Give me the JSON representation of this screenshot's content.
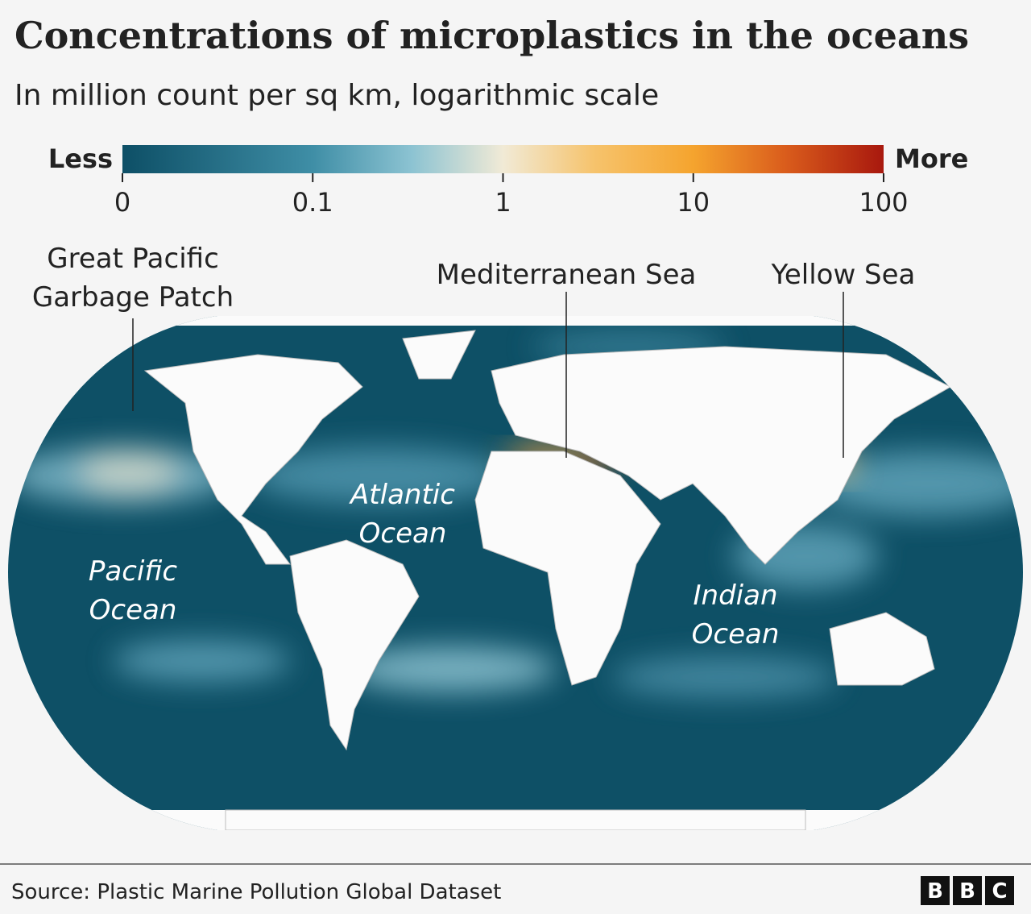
{
  "header": {
    "title": "Concentrations of microplastics in the oceans",
    "subtitle": "In million count per sq km, logarithmic scale"
  },
  "legend": {
    "low_label": "Less",
    "high_label": "More",
    "ticks": [
      0,
      0.1,
      1,
      10,
      100
    ]
  },
  "annotations": [
    {
      "lines": [
        "Great Pacific",
        "Garbage Patch"
      ]
    },
    {
      "lines": [
        "Mediterranean Sea"
      ]
    },
    {
      "lines": [
        "Yellow Sea"
      ]
    }
  ],
  "ocean_labels": [
    {
      "lines": [
        "Atlantic",
        "Ocean"
      ]
    },
    {
      "lines": [
        "Pacific",
        "Ocean"
      ]
    },
    {
      "lines": [
        "Indian",
        "Ocean"
      ]
    }
  ],
  "footer": {
    "source": "Source: Plastic Marine Pollution Global Dataset",
    "logo": [
      "B",
      "B",
      "C"
    ]
  }
}
